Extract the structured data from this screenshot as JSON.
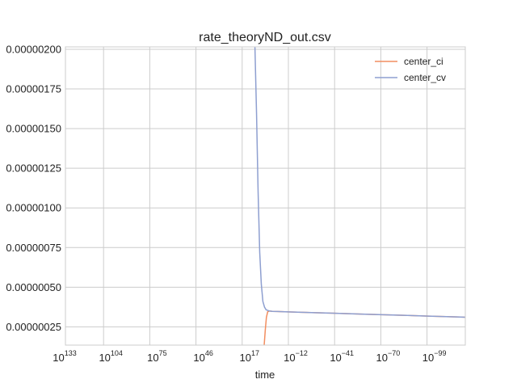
{
  "chart_data": {
    "type": "line",
    "title": "rate_theoryND_out.csv",
    "xlabel": "time",
    "ylabel": "",
    "x_scale": "log",
    "x_ticks": [
      {
        "base": "10",
        "exp": "133"
      },
      {
        "base": "10",
        "exp": "104"
      },
      {
        "base": "10",
        "exp": "75"
      },
      {
        "base": "10",
        "exp": "46"
      },
      {
        "base": "10",
        "exp": "17"
      },
      {
        "base": "10",
        "exp": "−12"
      },
      {
        "base": "10",
        "exp": "−41"
      },
      {
        "base": "10",
        "exp": "−70"
      },
      {
        "base": "10",
        "exp": "−99"
      }
    ],
    "y_ticks": [
      "0.00000025",
      "0.00000050",
      "0.00000075",
      "0.00000100",
      "0.00000125",
      "0.00000150",
      "0.00000175",
      "0.00000200"
    ],
    "ylim": [
      1.35e-07,
      2.015e-06
    ],
    "grid": true,
    "legend_position": "top-right",
    "series": [
      {
        "name": "center_ci",
        "color": "#f28e60",
        "x_exp": [
          3.2,
          2.5,
          1.8,
          1.0,
          0.0,
          -2.0,
          -5.0,
          -10.0,
          -20.0,
          -40.0,
          -60.0,
          -80.0,
          -100.0,
          -120.0,
          -140.0
        ],
        "y": [
          1.35e-07,
          2.3e-07,
          3.1e-07,
          3.45e-07,
          3.5e-07,
          3.48e-07,
          3.47e-07,
          3.45e-07,
          3.42e-07,
          3.36e-07,
          3.3e-07,
          3.24e-07,
          3.18e-07,
          3.12e-07,
          3.05e-07
        ]
      },
      {
        "name": "center_cv",
        "color": "#8e9fd0",
        "x_exp": [
          9.0,
          8.0,
          7.0,
          6.0,
          5.0,
          4.0,
          3.0,
          2.0,
          0.0,
          -2.0,
          -5.0,
          -10.0,
          -20.0,
          -40.0,
          -60.0,
          -80.0,
          -100.0,
          -120.0,
          -140.0
        ],
        "y": [
          2.015e-06,
          1.6e-06,
          1.1e-06,
          7.2e-07,
          5.2e-07,
          4.1e-07,
          3.75e-07,
          3.58e-07,
          3.5e-07,
          3.48e-07,
          3.47e-07,
          3.45e-07,
          3.42e-07,
          3.36e-07,
          3.3e-07,
          3.24e-07,
          3.18e-07,
          3.12e-07,
          3.05e-07
        ]
      }
    ]
  }
}
